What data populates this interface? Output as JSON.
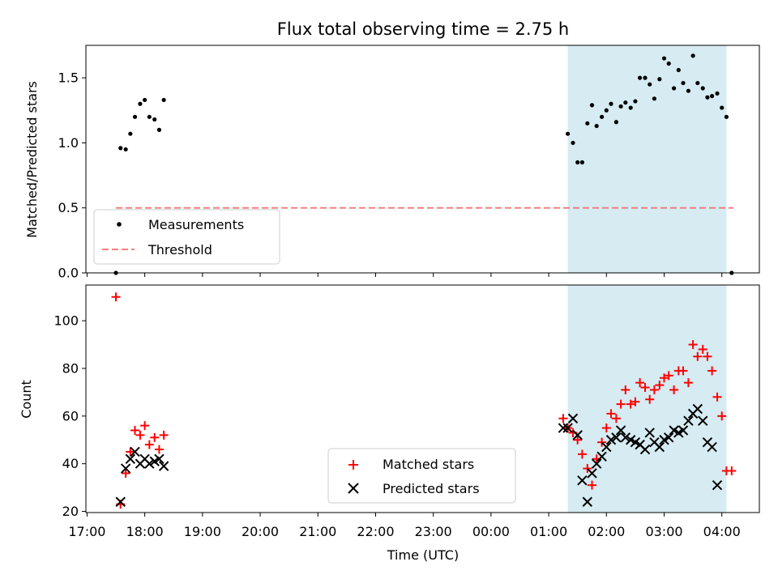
{
  "chart_data": {
    "type": "scatter",
    "title": "Flux total observing time = 2.75 h",
    "xlabel": "Time (UTC)",
    "x_unit": "hours since 17:00 UTC",
    "xlim": [
      -0.02,
      11.65
    ],
    "xticks": [
      {
        "v": 0,
        "label": "17:00"
      },
      {
        "v": 1,
        "label": "18:00"
      },
      {
        "v": 2,
        "label": "19:00"
      },
      {
        "v": 3,
        "label": "20:00"
      },
      {
        "v": 4,
        "label": "21:00"
      },
      {
        "v": 5,
        "label": "22:00"
      },
      {
        "v": 6,
        "label": "23:00"
      },
      {
        "v": 7,
        "label": "00:00"
      },
      {
        "v": 8,
        "label": "01:00"
      },
      {
        "v": 9,
        "label": "02:00"
      },
      {
        "v": 10,
        "label": "03:00"
      },
      {
        "v": 11,
        "label": "04:00"
      }
    ],
    "observing_window": [
      8.33,
      11.08
    ],
    "top": {
      "ylabel": "Matched/Predicted stars",
      "ylim": [
        0,
        1.75
      ],
      "yticks": [
        {
          "v": 0,
          "label": "0.0"
        },
        {
          "v": 0.5,
          "label": "0.5"
        },
        {
          "v": 1.0,
          "label": "1.0"
        },
        {
          "v": 1.5,
          "label": "1.5"
        }
      ],
      "threshold": {
        "value": 0.5,
        "x_range": [
          0.5,
          11.2
        ]
      },
      "series": [
        {
          "name": "Measurements",
          "points": [
            [
              0.5,
              0.0
            ],
            [
              0.58,
              0.96
            ],
            [
              0.67,
              0.95
            ],
            [
              0.75,
              1.07
            ],
            [
              0.83,
              1.2
            ],
            [
              0.92,
              1.3
            ],
            [
              1.0,
              1.33
            ],
            [
              1.08,
              1.2
            ],
            [
              1.17,
              1.18
            ],
            [
              1.25,
              1.1
            ],
            [
              1.33,
              1.33
            ],
            [
              8.33,
              1.07
            ],
            [
              8.42,
              1.0
            ],
            [
              8.5,
              0.85
            ],
            [
              8.58,
              0.85
            ],
            [
              8.67,
              1.15
            ],
            [
              8.75,
              1.29
            ],
            [
              8.83,
              1.13
            ],
            [
              8.92,
              1.2
            ],
            [
              9.0,
              1.25
            ],
            [
              9.08,
              1.3
            ],
            [
              9.17,
              1.16
            ],
            [
              9.25,
              1.28
            ],
            [
              9.33,
              1.31
            ],
            [
              9.42,
              1.27
            ],
            [
              9.5,
              1.32
            ],
            [
              9.58,
              1.5
            ],
            [
              9.67,
              1.5
            ],
            [
              9.75,
              1.45
            ],
            [
              9.83,
              1.34
            ],
            [
              9.92,
              1.49
            ],
            [
              10.0,
              1.65
            ],
            [
              10.08,
              1.61
            ],
            [
              10.17,
              1.42
            ],
            [
              10.25,
              1.56
            ],
            [
              10.33,
              1.46
            ],
            [
              10.42,
              1.4
            ],
            [
              10.5,
              1.67
            ],
            [
              10.58,
              1.46
            ],
            [
              10.67,
              1.42
            ],
            [
              10.75,
              1.35
            ],
            [
              10.83,
              1.36
            ],
            [
              10.92,
              1.38
            ],
            [
              11.0,
              1.27
            ],
            [
              11.08,
              1.2
            ],
            [
              11.17,
              0.0
            ]
          ]
        }
      ],
      "legend": {
        "position": "lower-left",
        "entries": [
          "Measurements",
          "Threshold"
        ]
      }
    },
    "bottom": {
      "ylabel": "Count",
      "ylim": [
        19.5,
        115
      ],
      "yticks": [
        {
          "v": 20,
          "label": "20"
        },
        {
          "v": 40,
          "label": "40"
        },
        {
          "v": 60,
          "label": "60"
        },
        {
          "v": 80,
          "label": "80"
        },
        {
          "v": 100,
          "label": "100"
        }
      ],
      "series": [
        {
          "name": "Matched stars",
          "marker": "plus",
          "points": [
            [
              0.5,
              110
            ],
            [
              0.58,
              23
            ],
            [
              0.67,
              36
            ],
            [
              0.75,
              45
            ],
            [
              0.83,
              54
            ],
            [
              0.92,
              52
            ],
            [
              1.0,
              56
            ],
            [
              1.08,
              48
            ],
            [
              1.17,
              51
            ],
            [
              1.25,
              46
            ],
            [
              1.33,
              52
            ],
            [
              8.25,
              59
            ],
            [
              8.33,
              55
            ],
            [
              8.42,
              53
            ],
            [
              8.5,
              50
            ],
            [
              8.58,
              44
            ],
            [
              8.67,
              38
            ],
            [
              8.75,
              31
            ],
            [
              8.83,
              42
            ],
            [
              8.92,
              49
            ],
            [
              9.0,
              55
            ],
            [
              9.08,
              61
            ],
            [
              9.17,
              59
            ],
            [
              9.25,
              65
            ],
            [
              9.33,
              71
            ],
            [
              9.42,
              65
            ],
            [
              9.5,
              66
            ],
            [
              9.58,
              74
            ],
            [
              9.67,
              72
            ],
            [
              9.75,
              67
            ],
            [
              9.83,
              71
            ],
            [
              9.92,
              73
            ],
            [
              10.0,
              76
            ],
            [
              10.08,
              77
            ],
            [
              10.17,
              71
            ],
            [
              10.25,
              79
            ],
            [
              10.33,
              79
            ],
            [
              10.42,
              74
            ],
            [
              10.5,
              90
            ],
            [
              10.58,
              85
            ],
            [
              10.67,
              88
            ],
            [
              10.75,
              85
            ],
            [
              10.83,
              79
            ],
            [
              10.92,
              68
            ],
            [
              11.0,
              60
            ],
            [
              11.08,
              37
            ],
            [
              11.17,
              37
            ]
          ]
        },
        {
          "name": "Predicted stars",
          "marker": "x",
          "points": [
            [
              0.58,
              24
            ],
            [
              0.67,
              38
            ],
            [
              0.75,
              42
            ],
            [
              0.83,
              45
            ],
            [
              0.92,
              40
            ],
            [
              1.0,
              42
            ],
            [
              1.08,
              40
            ],
            [
              1.17,
              41
            ],
            [
              1.25,
              42
            ],
            [
              1.33,
              39
            ],
            [
              8.25,
              55
            ],
            [
              8.33,
              55
            ],
            [
              8.42,
              59
            ],
            [
              8.5,
              52
            ],
            [
              8.58,
              33
            ],
            [
              8.67,
              24
            ],
            [
              8.75,
              36
            ],
            [
              8.83,
              40
            ],
            [
              8.92,
              43
            ],
            [
              9.0,
              47
            ],
            [
              9.08,
              50
            ],
            [
              9.17,
              51
            ],
            [
              9.25,
              54
            ],
            [
              9.33,
              51
            ],
            [
              9.42,
              50
            ],
            [
              9.5,
              49
            ],
            [
              9.58,
              48
            ],
            [
              9.67,
              46
            ],
            [
              9.75,
              53
            ],
            [
              9.83,
              49
            ],
            [
              9.92,
              47
            ],
            [
              10.0,
              50
            ],
            [
              10.08,
              51
            ],
            [
              10.17,
              54
            ],
            [
              10.25,
              53
            ],
            [
              10.33,
              54
            ],
            [
              10.42,
              58
            ],
            [
              10.5,
              61
            ],
            [
              10.58,
              63
            ],
            [
              10.67,
              58
            ],
            [
              10.75,
              49
            ],
            [
              10.83,
              47
            ],
            [
              10.92,
              31
            ]
          ]
        }
      ],
      "legend": {
        "position": "lower-center",
        "entries": [
          "Matched stars",
          "Predicted stars"
        ]
      }
    },
    "colors": {
      "measurements": "#000000",
      "threshold": "#f08080",
      "matched": "#ff0000",
      "predicted": "#000000",
      "window": "#add8e6"
    }
  }
}
